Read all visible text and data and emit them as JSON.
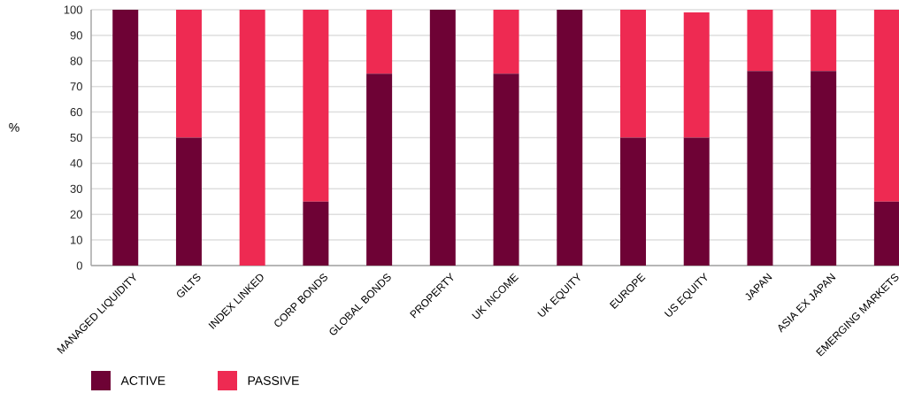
{
  "chart_data": {
    "type": "bar",
    "stacked": true,
    "ylabel": "%",
    "categories": [
      "MANAGED LIQUIDITY",
      "GILTS",
      "INDEX LINKED",
      "CORP BONDS",
      "GLOBAL BONDS",
      "PROPERTY",
      "UK INCOME",
      "UK EQUITY",
      "EUROPE",
      "US EQUITY",
      "JAPAN",
      "ASIA EX JAPAN",
      "EMERGING MARKETS"
    ],
    "series": [
      {
        "name": "ACTIVE",
        "color": "#6e0235",
        "values": [
          100,
          50,
          0,
          25,
          75,
          100,
          75,
          100,
          50,
          50,
          76,
          76,
          25
        ]
      },
      {
        "name": "PASSIVE",
        "color": "#ee2a52",
        "values": [
          0,
          50,
          100,
          75,
          25,
          0,
          25,
          0,
          50,
          49,
          24,
          24,
          75
        ]
      }
    ],
    "ylim": [
      0,
      100
    ],
    "yticks": [
      0,
      10,
      20,
      30,
      40,
      50,
      60,
      70,
      80,
      90,
      100
    ],
    "grid": "y",
    "legend": "bottom left"
  }
}
